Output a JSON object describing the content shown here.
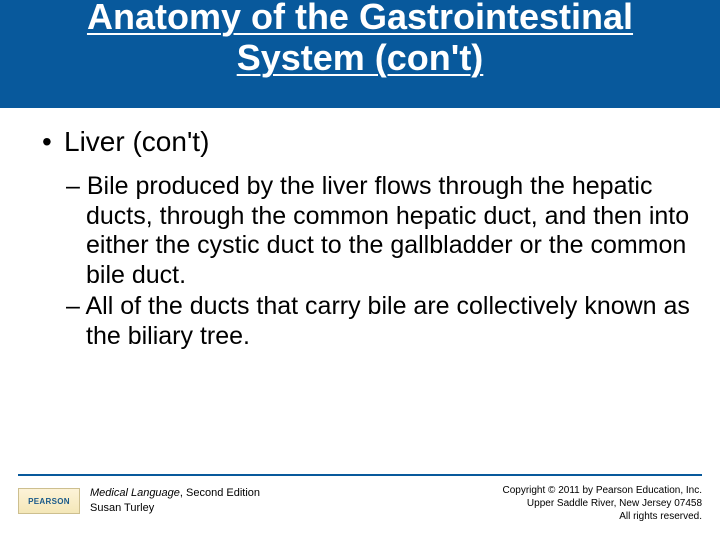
{
  "title_line1": "Anatomy of the Gastrointestinal",
  "title_line2": "System (con't)",
  "level1": {
    "text": "Liver (con't)"
  },
  "level2": [
    "Bile produced by the liver flows through the hepatic ducts, through the common hepatic duct, and then into either the cystic duct to the gallbladder or the common bile duct.",
    "All of the ducts that carry bile are collectively known as the biliary tree."
  ],
  "footer": {
    "logo_text": "PEARSON",
    "book_title": "Medical Language",
    "book_edition": ", Second Edition",
    "author": "Susan Turley",
    "copyright_line1": "Copyright © 2011 by Pearson Education, Inc.",
    "copyright_line2": "Upper Saddle River, New Jersey 07458",
    "copyright_line3": "All rights reserved."
  },
  "colors": {
    "band": "#08599c",
    "text": "#000000",
    "title_text": "#ffffff"
  }
}
